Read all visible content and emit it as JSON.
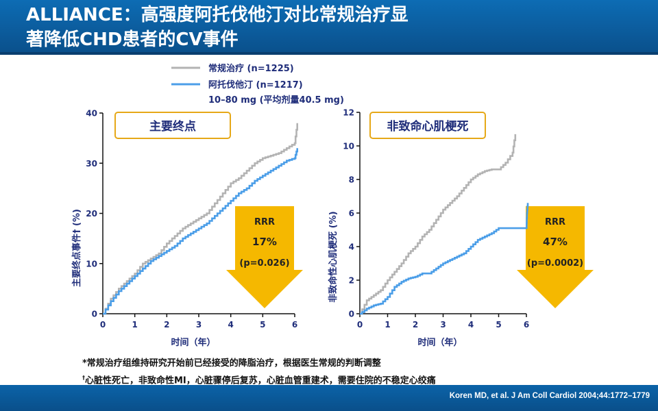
{
  "slide": {
    "title_line1": "ALLIANCE：高强度阿托伐他汀对比常规治疗显",
    "title_line2": "著降低CHD患者的CV事件",
    "citation": "Koren MD, et al. J Am Coll Cardiol 2004;44:1772–1779",
    "note1": "*常规治疗组维持研究开始前已经接受的降脂治疗，根据医生常规的判断调整",
    "note2_mark": "†",
    "note2": "心脏性死亡，非致命性MI，心脏骤停后复苏，心脏血管重建术，需要住院的不稳定心绞痛"
  },
  "legend": {
    "usual": "常规治疗 (n=1225)",
    "ator": "阿托伐他汀 (n=1217)",
    "ator_dose": "10–80 mg (平均剂量40.5 mg)"
  },
  "colors": {
    "usual": "#b3b3b3",
    "ator": "#4b9ee8",
    "arrow": "#f5b800",
    "axis": "#1f2d7a",
    "header": "#0a5a9e"
  },
  "chart_data": [
    {
      "type": "line",
      "title": "主要终点",
      "xlabel": "时间（年）",
      "ylabel": "主要终点事件† (%)",
      "xlim": [
        0,
        6
      ],
      "ylim": [
        0,
        40
      ],
      "xticks": [
        "0",
        "1",
        "2",
        "3",
        "4",
        "5",
        "6"
      ],
      "yticks": [
        "0",
        "10",
        "20",
        "30",
        "40"
      ],
      "series": [
        {
          "name": "常规治疗 (n=1225)",
          "x": [
            0,
            0.25,
            0.5,
            0.75,
            1,
            1.25,
            1.5,
            1.75,
            2,
            2.25,
            2.5,
            2.75,
            3,
            3.25,
            3.5,
            3.75,
            4,
            4.25,
            4.5,
            4.75,
            5,
            5.25,
            5.5,
            5.75,
            6,
            6.08
          ],
          "y": [
            0,
            3,
            5,
            6.5,
            8,
            10,
            11,
            12,
            14,
            15.5,
            17,
            18,
            19,
            20,
            22,
            24,
            26,
            27,
            28.5,
            30,
            31,
            31.5,
            32,
            33,
            34,
            38
          ]
        },
        {
          "name": "阿托伐他汀 (n=1217)",
          "x": [
            0,
            0.25,
            0.5,
            0.75,
            1,
            1.25,
            1.5,
            1.75,
            2,
            2.25,
            2.5,
            2.75,
            3,
            3.25,
            3.5,
            3.75,
            4,
            4.25,
            4.5,
            4.75,
            5,
            5.25,
            5.5,
            5.75,
            6,
            6.08
          ],
          "y": [
            0,
            2.5,
            4.5,
            6,
            7.5,
            9,
            10.5,
            11.5,
            12.5,
            13.5,
            15,
            16,
            17,
            18,
            19.5,
            21,
            22.5,
            24,
            25,
            26.5,
            27.5,
            28.5,
            29.5,
            30.5,
            31,
            33
          ]
        }
      ],
      "annotation": {
        "label": "RRR",
        "value": "17%",
        "p": "(p=0.026)"
      }
    },
    {
      "type": "line",
      "title": "非致命心肌梗死",
      "xlabel": "时间（年）",
      "ylabel": "非致命性心肌梗死 (%)",
      "xlim": [
        0,
        6
      ],
      "ylim": [
        0,
        12
      ],
      "xticks": [
        "0",
        "1",
        "2",
        "3",
        "4",
        "5",
        "6"
      ],
      "yticks": [
        "0",
        "2",
        "4",
        "6",
        "8",
        "10",
        "12"
      ],
      "series": [
        {
          "name": "常规治疗 (n=1225)",
          "x": [
            0,
            0.25,
            0.5,
            0.75,
            1,
            1.25,
            1.5,
            1.75,
            2,
            2.25,
            2.5,
            2.75,
            3,
            3.25,
            3.5,
            3.75,
            4,
            4.25,
            4.5,
            4.75,
            5,
            5.25,
            5.5,
            5.6
          ],
          "y": [
            0,
            0.8,
            1.1,
            1.4,
            2.0,
            2.5,
            3.0,
            3.6,
            4.0,
            4.6,
            5.0,
            5.6,
            6.2,
            6.6,
            7.0,
            7.5,
            8.0,
            8.3,
            8.5,
            8.6,
            8.6,
            9.0,
            9.6,
            10.7
          ]
        },
        {
          "name": "阿托伐他汀 (n=1217)",
          "x": [
            0,
            0.25,
            0.5,
            0.75,
            1,
            1.25,
            1.5,
            1.75,
            2,
            2.25,
            2.5,
            2.75,
            3,
            3.25,
            3.5,
            3.75,
            4,
            4.25,
            4.5,
            4.75,
            5,
            5.25,
            5.5,
            5.75,
            6,
            6.02,
            6.05
          ],
          "y": [
            0,
            0.3,
            0.5,
            0.6,
            1.0,
            1.6,
            1.9,
            2.1,
            2.2,
            2.4,
            2.4,
            2.7,
            3.0,
            3.2,
            3.4,
            3.6,
            4.0,
            4.4,
            4.6,
            4.8,
            5.1,
            5.1,
            5.1,
            5.1,
            5.1,
            6.0,
            6.6
          ]
        }
      ],
      "annotation": {
        "label": "RRR",
        "value": "47%",
        "p": "(p=0.0002)"
      }
    }
  ]
}
